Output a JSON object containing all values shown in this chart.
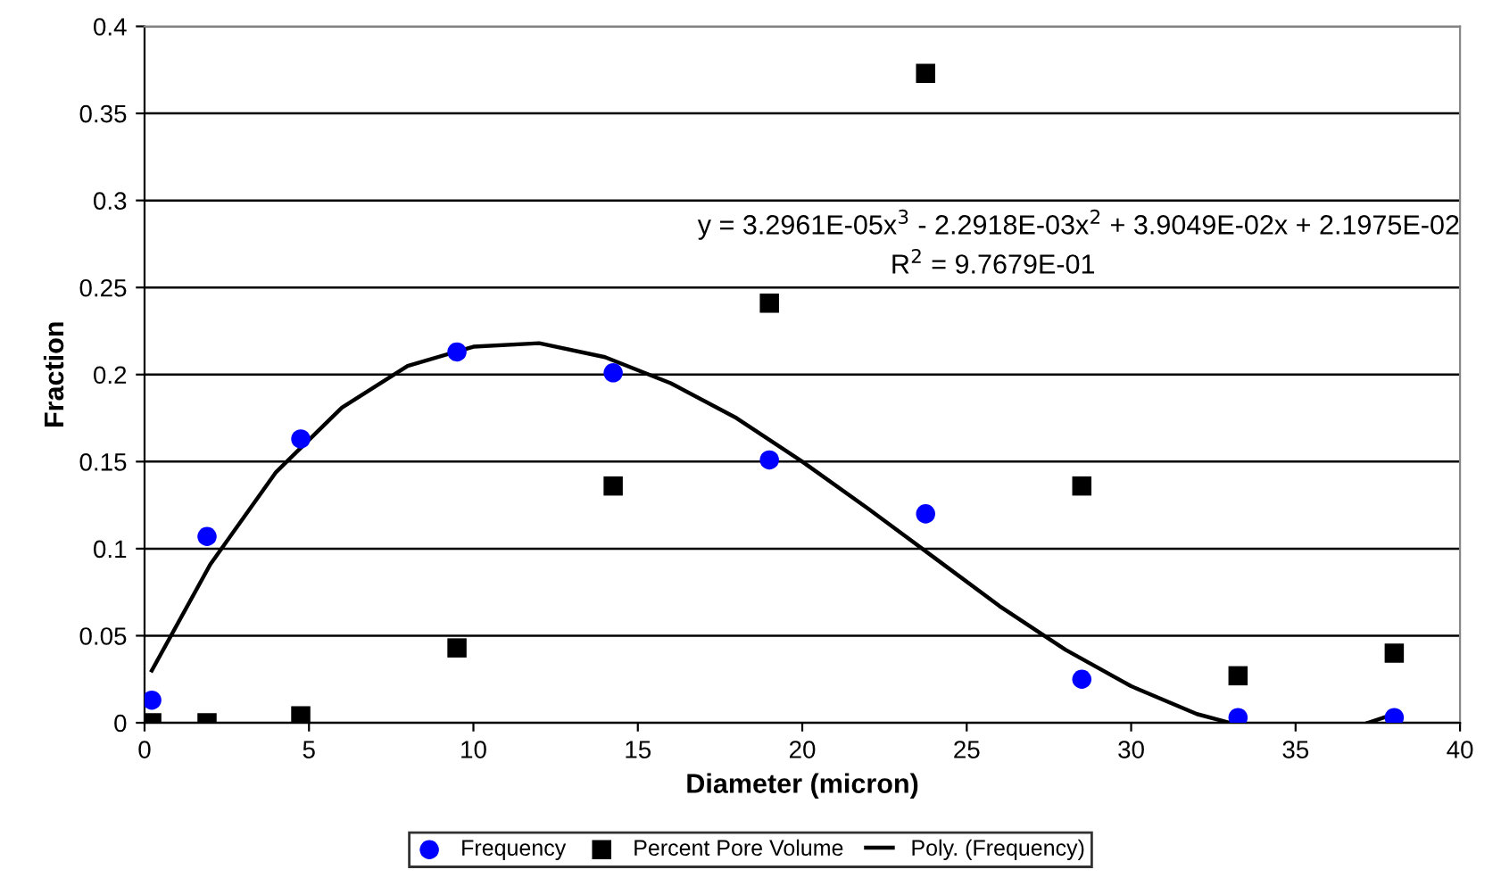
{
  "chart_data": {
    "type": "scatter",
    "xlabel": "Diameter (micron)",
    "ylabel": "Fraction",
    "xlim": [
      0,
      40
    ],
    "xticks": [
      0,
      5,
      10,
      15,
      20,
      25,
      30,
      35,
      40
    ],
    "ylim": [
      0,
      0.4
    ],
    "yticks": [
      0,
      0.05,
      0.1,
      0.15,
      0.2,
      0.25,
      0.3,
      0.35,
      0.4
    ],
    "grid": "y",
    "legend": "bottom",
    "series": [
      {
        "name": "Frequency",
        "marker": "circle",
        "color": "#0000ff",
        "x": [
          0.22,
          1.9,
          4.75,
          9.5,
          14.25,
          19.0,
          23.75,
          28.5,
          33.25,
          38.0
        ],
        "values": [
          0.013,
          0.107,
          0.163,
          0.213,
          0.201,
          0.151,
          0.12,
          0.025,
          0.003,
          0.003
        ]
      },
      {
        "name": "Percent Pore Volume",
        "marker": "square",
        "color": "#000000",
        "x": [
          0.22,
          1.9,
          4.75,
          9.5,
          14.25,
          19.0,
          23.75,
          28.5,
          33.25,
          38.0
        ],
        "values": [
          0,
          0,
          0.004,
          0.043,
          0.136,
          0.241,
          0.373,
          0.136,
          0.027,
          0.04
        ]
      },
      {
        "name": "Poly. (Frequency)",
        "type": "line",
        "marker": "none",
        "line_style": "solid",
        "color": "#000000",
        "x": [
          0.22,
          2,
          4,
          6,
          8,
          10,
          12,
          14,
          16,
          18,
          20,
          22,
          24,
          26,
          28,
          30,
          32,
          33,
          35,
          37.2,
          38
        ],
        "values": [
          0.03,
          0.091,
          0.144,
          0.181,
          0.205,
          0.216,
          0.218,
          0.21,
          0.195,
          0.175,
          0.15,
          0.123,
          0.095,
          0.067,
          0.042,
          0.021,
          0.005,
          0,
          null,
          0,
          0.005
        ]
      }
    ],
    "annotations": [
      "y = 3.2961E-05x$^{3}$ - 2.2918E-03x$^{2}$ + 3.9049E-02x + 2.1975E-02",
      "R$^{2}$ = 9.7679E-01"
    ]
  }
}
